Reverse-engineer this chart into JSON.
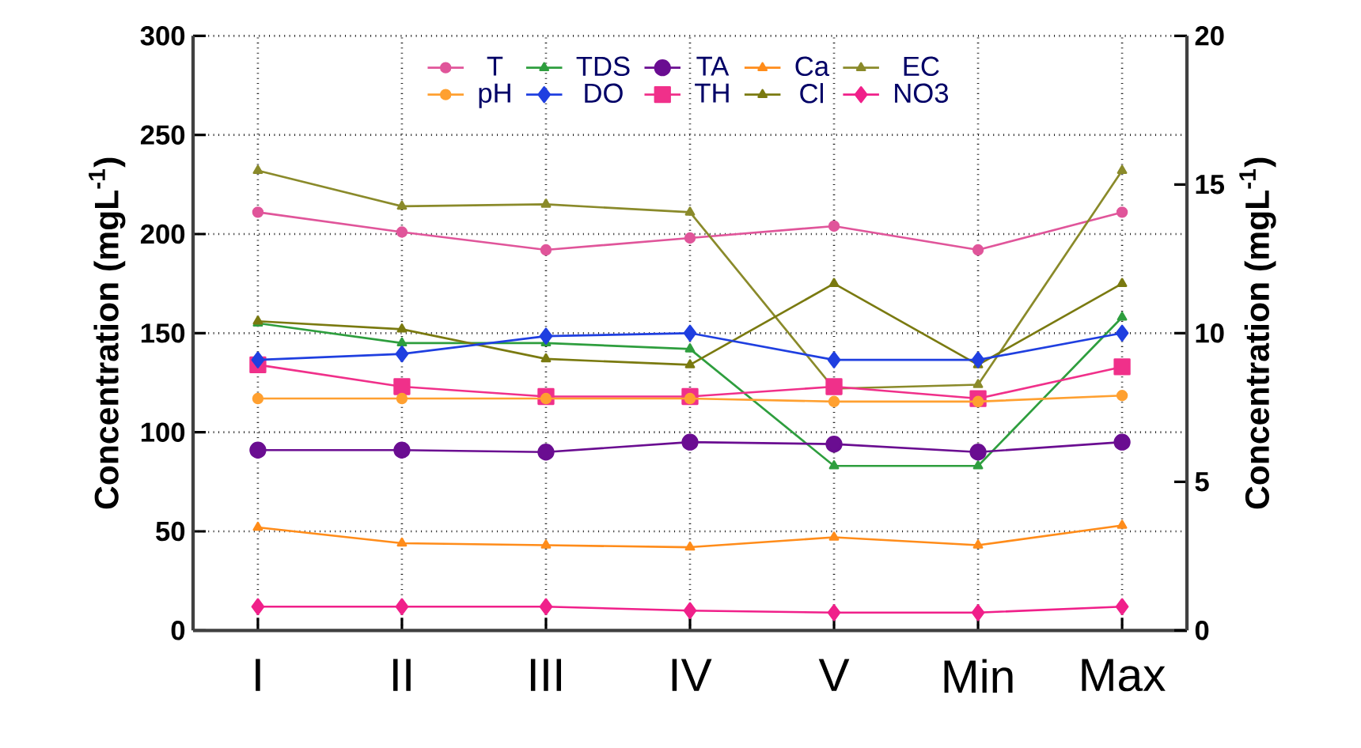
{
  "chart_data": {
    "type": "line",
    "categories": [
      "I",
      "II",
      "III",
      "IV",
      "V",
      "Min",
      "Max"
    ],
    "ylabel": "Concentration (mgL$^{-1}$)",
    "y2label": "Concentration (mgL$^{-1}$)",
    "ylim": [
      0,
      300
    ],
    "yticks": [
      0,
      50,
      100,
      150,
      200,
      250,
      300
    ],
    "y2lim": [
      0,
      20
    ],
    "y2ticks": [
      0,
      5,
      10,
      15,
      20
    ],
    "grid": true,
    "legend": "top",
    "series": [
      {
        "name": "T",
        "color": "#e0559a",
        "marker": "circle",
        "values": [
          211,
          201,
          192,
          198,
          204,
          192,
          211
        ]
      },
      {
        "name": "TDS",
        "color": "#2e9e3e",
        "marker": "triangle",
        "values": [
          155,
          145,
          145,
          142,
          83,
          83,
          158
        ]
      },
      {
        "name": "TA",
        "color": "#6a0d91",
        "marker": "circle",
        "values": [
          91,
          91,
          90,
          95,
          94,
          90,
          95
        ]
      },
      {
        "name": "Ca",
        "color": "#ff8c1a",
        "marker": "triangle",
        "values": [
          52,
          44,
          43,
          42,
          47,
          43,
          53
        ]
      },
      {
        "name": "EC",
        "color": "#8a8a2a",
        "marker": "triangle",
        "values": [
          232,
          214,
          215,
          211,
          122,
          124,
          232
        ]
      },
      {
        "name": "pH",
        "color": "#ffa030",
        "marker": "circle",
        "axis": "y2",
        "values": [
          7.8,
          7.8,
          7.8,
          7.8,
          7.7,
          7.7,
          7.9
        ]
      },
      {
        "name": "DO",
        "color": "#1f3fe0",
        "marker": "diamond",
        "axis": "y2",
        "values": [
          9.1,
          9.3,
          9.9,
          10,
          9.1,
          9.1,
          10
        ]
      },
      {
        "name": "TH",
        "color": "#f0308a",
        "marker": "square",
        "values": [
          134,
          123,
          118,
          118,
          123,
          117,
          133
        ]
      },
      {
        "name": "Cl",
        "color": "#7a7a10",
        "marker": "triangle",
        "values": [
          156,
          152,
          137,
          134,
          175,
          134,
          175
        ]
      },
      {
        "name": "NO3",
        "color": "#f0208a",
        "marker": "diamond",
        "values": [
          12,
          12,
          12,
          10,
          9,
          9,
          12
        ]
      }
    ]
  }
}
